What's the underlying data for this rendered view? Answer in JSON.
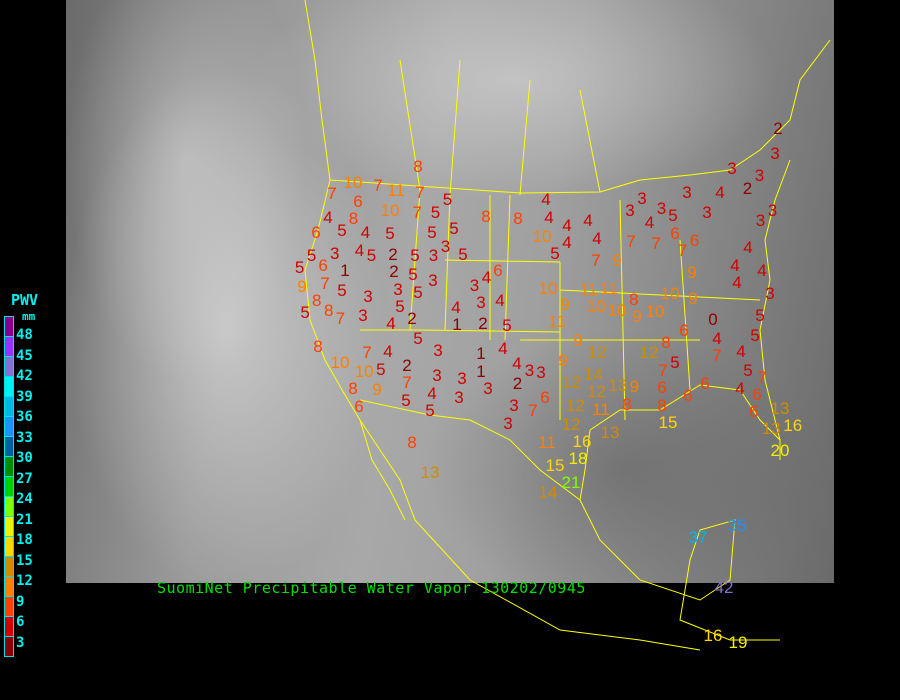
{
  "title": "SuomiNet Precipitable Water Vapor 130202/0945",
  "legend": {
    "title": "PWV",
    "unit": "mm",
    "labels": [
      "48",
      "45",
      "42",
      "39",
      "36",
      "33",
      "30",
      "27",
      "24",
      "21",
      "18",
      "15",
      "12",
      "9",
      "6",
      "3"
    ],
    "colors": [
      "#8b008b",
      "#9932ff",
      "#8870d0",
      "#00f0f0",
      "#00b8e8",
      "#2090ff",
      "#005f9f",
      "#008c00",
      "#00d000",
      "#80ff00",
      "#f0f000",
      "#ffd700",
      "#d08c00",
      "#ff8000",
      "#ff4000",
      "#d00000",
      "#8b0000"
    ]
  },
  "map": {
    "background": "grayscale satellite infrared",
    "border_color": "#ffff00"
  },
  "stations": [
    8,
    10,
    7,
    11,
    7,
    6,
    7,
    7,
    5,
    10,
    4,
    8,
    5,
    8,
    8,
    6,
    5,
    4,
    5,
    5,
    5,
    4,
    5,
    2,
    5,
    3,
    5,
    3,
    5,
    3,
    5,
    6,
    1,
    2,
    5,
    3,
    3,
    5,
    9,
    7,
    5,
    3,
    8,
    8,
    5,
    7,
    3,
    5,
    2,
    4,
    4,
    3,
    4,
    3,
    4,
    1,
    2,
    5,
    5,
    6,
    2,
    3,
    3,
    3,
    2,
    4,
    3,
    3,
    3,
    3,
    5,
    4,
    3,
    3,
    3,
    4,
    4,
    4,
    4,
    4,
    10,
    5,
    4,
    7,
    9,
    7,
    7,
    6,
    7,
    6,
    4,
    4,
    4,
    4,
    9,
    3,
    10,
    9,
    11,
    11,
    11,
    10,
    10,
    8,
    9,
    10,
    10,
    9,
    0,
    5,
    5,
    4,
    7,
    4,
    6,
    8,
    12,
    12,
    9,
    9,
    3,
    5,
    7,
    12,
    14,
    12,
    13,
    6,
    7,
    12,
    11,
    9,
    8,
    6,
    8,
    6,
    6,
    5,
    7,
    4,
    6,
    6,
    13,
    13,
    16,
    20,
    13,
    15,
    12,
    11,
    16,
    18,
    15,
    21,
    14,
    8,
    10,
    7,
    4,
    2,
    10,
    5,
    7,
    8,
    9,
    6,
    5,
    4,
    5,
    3,
    3,
    3,
    3,
    1,
    1,
    3,
    4,
    4,
    3,
    2,
    3,
    3,
    8,
    13,
    37,
    35,
    42,
    16,
    19
  ]
}
